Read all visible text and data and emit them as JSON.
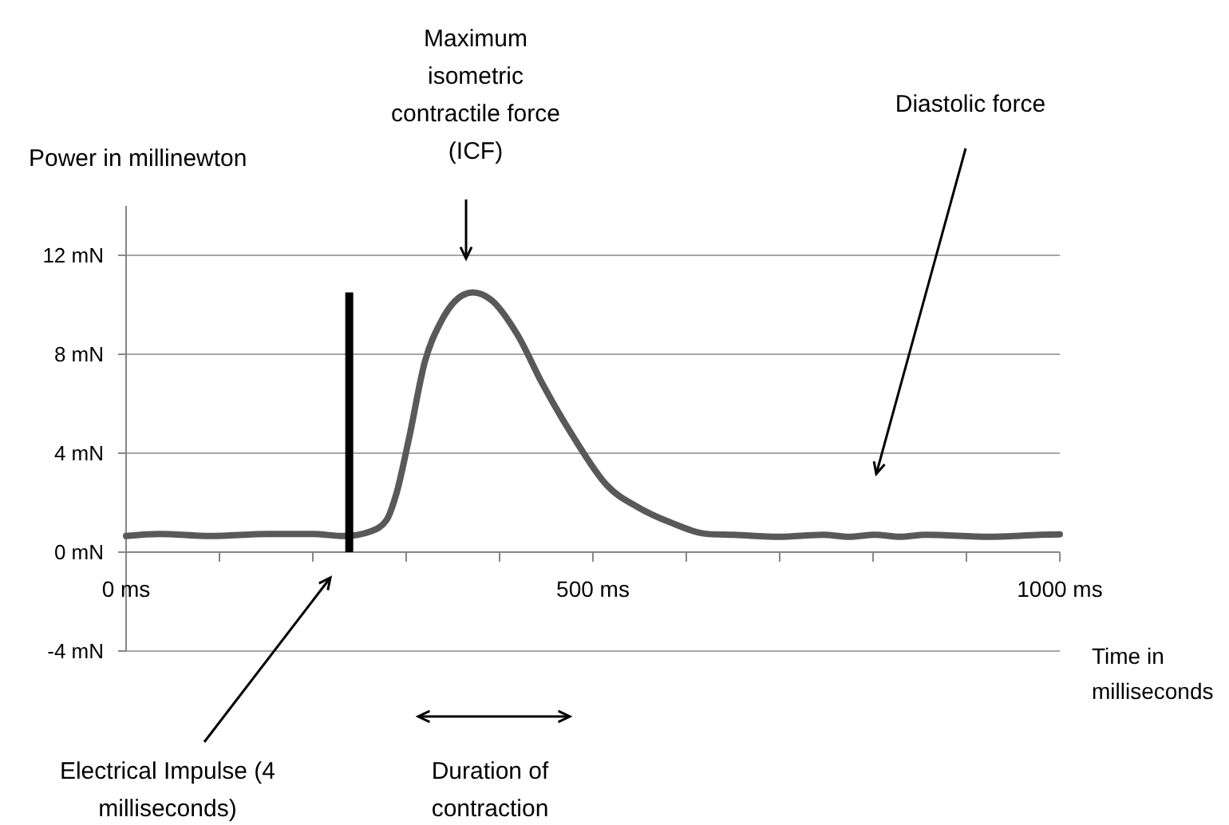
{
  "chart_data": {
    "type": "line",
    "xlabel": "Time in milliseconds",
    "ylabel": "Power in millinewton",
    "xlim": [
      0,
      1000
    ],
    "ylim": [
      -4,
      14
    ],
    "xticks": [
      {
        "value": 0,
        "label": "0 ms"
      },
      {
        "value": 100,
        "label": null
      },
      {
        "value": 200,
        "label": null
      },
      {
        "value": 300,
        "label": null
      },
      {
        "value": 400,
        "label": null
      },
      {
        "value": 500,
        "label": "500 ms"
      },
      {
        "value": 600,
        "label": null
      },
      {
        "value": 700,
        "label": null
      },
      {
        "value": 800,
        "label": null
      },
      {
        "value": 900,
        "label": null
      },
      {
        "value": 1000,
        "label": "1000 ms"
      }
    ],
    "yticks": [
      {
        "value": -4,
        "label": "-4 mN"
      },
      {
        "value": 0,
        "label": "0 mN"
      },
      {
        "value": 4,
        "label": "4 mN"
      },
      {
        "value": 8,
        "label": "8 mN"
      },
      {
        "value": 12,
        "label": "12 mN"
      }
    ],
    "grid": "y",
    "marker": "none",
    "line_style": "solid",
    "series": [
      {
        "color": "#595959",
        "x": [
          0,
          36,
          91,
          152,
          200,
          234,
          262,
          279,
          289,
          303,
          320,
          337,
          361,
          371,
          391,
          419,
          446,
          480,
          515,
          549,
          583,
          624,
          651,
          699,
          747,
          774,
          802,
          829,
          856,
          925,
          979,
          1000
        ],
        "values": [
          0.65,
          0.73,
          0.65,
          0.73,
          0.73,
          0.65,
          0.84,
          1.3,
          2.3,
          4.6,
          7.7,
          9.3,
          10.4,
          10.5,
          10.2,
          8.8,
          6.8,
          4.6,
          2.7,
          1.8,
          1.2,
          0.73,
          0.7,
          0.62,
          0.7,
          0.62,
          0.7,
          0.62,
          0.7,
          0.62,
          0.7,
          0.72
        ]
      },
      {
        "color": "#000000",
        "x": [
          239,
          239
        ],
        "values": [
          0,
          10.5
        ]
      }
    ],
    "annotations": [
      "Maximum isometric contractile force (ICF)",
      "Diastolic force",
      "Electrical Impulse (4 milliseconds)",
      "Duration of contraction"
    ]
  }
}
